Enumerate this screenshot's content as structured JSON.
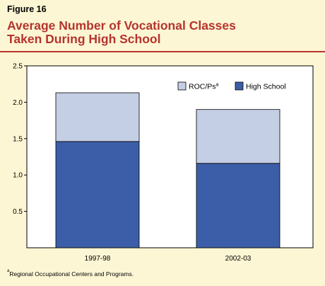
{
  "figure_label": "Figure 16",
  "title_lines": [
    "Average Number of Vocational Classes",
    "Taken During High School"
  ],
  "footnote": {
    "marker": "a",
    "text": "Regional Occupational Centers and Programs."
  },
  "colors": {
    "title": "#b5342e",
    "background": "#fdf6d4",
    "high_school": "#3c5ea8",
    "roc": "#c4cee4"
  },
  "chart_data": {
    "type": "bar",
    "stacked": true,
    "categories": [
      "1997-98",
      "2002-03"
    ],
    "series": [
      {
        "name": "High School",
        "values": [
          1.46,
          1.16
        ]
      },
      {
        "name": "ROC/Ps",
        "name_superscript": "a",
        "values": [
          0.67,
          0.74
        ]
      }
    ],
    "yticks": [
      "0.5",
      "1.0",
      "1.5",
      "2.0",
      "2.5"
    ],
    "ylim": [
      0,
      2.5
    ],
    "legend_position": "top-right",
    "grid": false
  }
}
